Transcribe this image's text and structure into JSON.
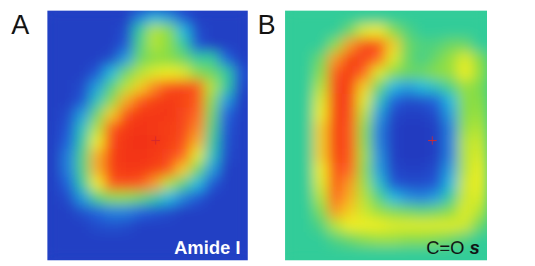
{
  "chart_data": [
    {
      "type": "heatmap",
      "panel_label": "A",
      "title": "Amide I",
      "tick_labels": false,
      "zlim": [
        0,
        1
      ],
      "cells": [
        [
          0.05,
          0.05,
          0.05,
          0.05,
          0.05,
          0.05,
          0.25,
          0.35,
          0.3,
          0.15,
          0.05,
          0.05,
          0.05,
          0.05
        ],
        [
          0.05,
          0.05,
          0.05,
          0.05,
          0.05,
          0.1,
          0.45,
          0.65,
          0.6,
          0.35,
          0.1,
          0.05,
          0.05,
          0.05
        ],
        [
          0.05,
          0.05,
          0.05,
          0.05,
          0.05,
          0.15,
          0.5,
          0.65,
          0.6,
          0.45,
          0.15,
          0.05,
          0.05,
          0.05
        ],
        [
          0.05,
          0.05,
          0.05,
          0.05,
          0.1,
          0.3,
          0.55,
          0.6,
          0.6,
          0.55,
          0.45,
          0.45,
          0.2,
          0.05
        ],
        [
          0.05,
          0.05,
          0.05,
          0.15,
          0.35,
          0.55,
          0.65,
          0.7,
          0.72,
          0.7,
          0.6,
          0.55,
          0.45,
          0.15
        ],
        [
          0.05,
          0.05,
          0.1,
          0.3,
          0.5,
          0.65,
          0.75,
          0.82,
          0.9,
          0.92,
          0.88,
          0.65,
          0.45,
          0.1
        ],
        [
          0.05,
          0.05,
          0.15,
          0.4,
          0.6,
          0.78,
          0.88,
          0.93,
          0.95,
          0.93,
          0.88,
          0.6,
          0.3,
          0.05
        ],
        [
          0.05,
          0.1,
          0.3,
          0.55,
          0.75,
          0.9,
          0.95,
          0.95,
          0.95,
          0.92,
          0.85,
          0.55,
          0.2,
          0.05
        ],
        [
          0.05,
          0.15,
          0.4,
          0.65,
          0.88,
          0.95,
          0.96,
          0.95,
          0.94,
          0.92,
          0.82,
          0.5,
          0.15,
          0.05
        ],
        [
          0.05,
          0.2,
          0.45,
          0.72,
          0.92,
          0.96,
          0.97,
          0.96,
          0.94,
          0.9,
          0.78,
          0.45,
          0.12,
          0.05
        ],
        [
          0.05,
          0.25,
          0.5,
          0.78,
          0.93,
          0.96,
          0.96,
          0.95,
          0.92,
          0.85,
          0.7,
          0.4,
          0.1,
          0.05
        ],
        [
          0.05,
          0.25,
          0.5,
          0.78,
          0.93,
          0.95,
          0.95,
          0.93,
          0.88,
          0.75,
          0.55,
          0.3,
          0.05,
          0.05
        ],
        [
          0.05,
          0.2,
          0.45,
          0.72,
          0.88,
          0.9,
          0.88,
          0.8,
          0.65,
          0.5,
          0.35,
          0.15,
          0.05,
          0.05
        ],
        [
          0.05,
          0.1,
          0.3,
          0.5,
          0.6,
          0.6,
          0.55,
          0.45,
          0.35,
          0.25,
          0.15,
          0.05,
          0.05,
          0.05
        ],
        [
          0.05,
          0.05,
          0.12,
          0.2,
          0.25,
          0.25,
          0.2,
          0.15,
          0.1,
          0.05,
          0.05,
          0.05,
          0.05,
          0.05
        ],
        [
          0.05,
          0.05,
          0.05,
          0.1,
          0.12,
          0.1,
          0.05,
          0.05,
          0.05,
          0.05,
          0.05,
          0.05,
          0.05,
          0.05
        ],
        [
          0.05,
          0.05,
          0.05,
          0.05,
          0.05,
          0.05,
          0.05,
          0.05,
          0.05,
          0.05,
          0.05,
          0.05,
          0.05,
          0.05
        ],
        [
          0.05,
          0.05,
          0.05,
          0.05,
          0.05,
          0.05,
          0.05,
          0.05,
          0.05,
          0.05,
          0.05,
          0.05,
          0.05,
          0.05
        ]
      ]
    },
    {
      "type": "heatmap",
      "panel_label": "B",
      "title": "C=O s",
      "tick_labels": false,
      "zlim": [
        0,
        1
      ],
      "cells": [
        [
          0.45,
          0.45,
          0.45,
          0.45,
          0.45,
          0.45,
          0.45,
          0.45,
          0.45,
          0.45,
          0.45,
          0.45,
          0.45,
          0.45
        ],
        [
          0.45,
          0.45,
          0.45,
          0.45,
          0.55,
          0.7,
          0.72,
          0.6,
          0.5,
          0.45,
          0.45,
          0.45,
          0.45,
          0.45
        ],
        [
          0.45,
          0.45,
          0.45,
          0.6,
          0.8,
          0.92,
          0.9,
          0.75,
          0.55,
          0.5,
          0.5,
          0.55,
          0.55,
          0.45
        ],
        [
          0.45,
          0.45,
          0.55,
          0.8,
          0.93,
          0.92,
          0.85,
          0.7,
          0.55,
          0.48,
          0.55,
          0.62,
          0.7,
          0.6
        ],
        [
          0.45,
          0.45,
          0.6,
          0.88,
          0.94,
          0.85,
          0.7,
          0.6,
          0.55,
          0.55,
          0.6,
          0.62,
          0.72,
          0.62
        ],
        [
          0.45,
          0.45,
          0.65,
          0.92,
          0.93,
          0.75,
          0.55,
          0.35,
          0.3,
          0.35,
          0.4,
          0.5,
          0.62,
          0.58
        ],
        [
          0.45,
          0.45,
          0.7,
          0.93,
          0.92,
          0.7,
          0.4,
          0.2,
          0.1,
          0.12,
          0.2,
          0.35,
          0.6,
          0.6
        ],
        [
          0.45,
          0.45,
          0.72,
          0.94,
          0.9,
          0.65,
          0.3,
          0.08,
          0.05,
          0.05,
          0.1,
          0.3,
          0.6,
          0.62
        ],
        [
          0.45,
          0.45,
          0.75,
          0.94,
          0.88,
          0.6,
          0.25,
          0.05,
          0.03,
          0.03,
          0.05,
          0.25,
          0.62,
          0.65
        ],
        [
          0.45,
          0.45,
          0.75,
          0.94,
          0.88,
          0.6,
          0.25,
          0.05,
          0.03,
          0.03,
          0.05,
          0.25,
          0.65,
          0.68
        ],
        [
          0.45,
          0.45,
          0.75,
          0.93,
          0.88,
          0.62,
          0.28,
          0.05,
          0.03,
          0.03,
          0.05,
          0.25,
          0.65,
          0.7
        ],
        [
          0.45,
          0.45,
          0.72,
          0.9,
          0.85,
          0.6,
          0.3,
          0.08,
          0.05,
          0.05,
          0.1,
          0.3,
          0.65,
          0.72
        ],
        [
          0.45,
          0.45,
          0.7,
          0.88,
          0.8,
          0.62,
          0.38,
          0.15,
          0.1,
          0.1,
          0.15,
          0.35,
          0.68,
          0.72
        ],
        [
          0.45,
          0.45,
          0.65,
          0.85,
          0.78,
          0.65,
          0.5,
          0.35,
          0.28,
          0.25,
          0.3,
          0.45,
          0.68,
          0.7
        ],
        [
          0.45,
          0.45,
          0.58,
          0.8,
          0.75,
          0.68,
          0.62,
          0.58,
          0.55,
          0.52,
          0.55,
          0.6,
          0.7,
          0.65
        ],
        [
          0.45,
          0.45,
          0.5,
          0.65,
          0.72,
          0.72,
          0.72,
          0.7,
          0.7,
          0.7,
          0.7,
          0.7,
          0.68,
          0.55
        ],
        [
          0.45,
          0.45,
          0.45,
          0.5,
          0.55,
          0.6,
          0.62,
          0.62,
          0.6,
          0.6,
          0.58,
          0.55,
          0.5,
          0.45
        ],
        [
          0.45,
          0.45,
          0.45,
          0.45,
          0.45,
          0.45,
          0.45,
          0.45,
          0.45,
          0.45,
          0.45,
          0.45,
          0.45,
          0.45
        ]
      ]
    }
  ]
}
